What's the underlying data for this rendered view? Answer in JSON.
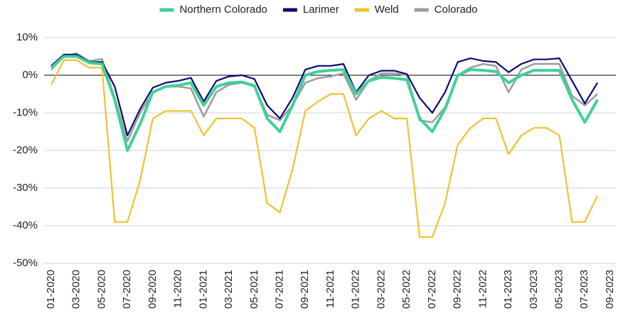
{
  "chart_data": {
    "type": "line",
    "categories": [
      "01-2020",
      null,
      "03-2020",
      null,
      "05-2020",
      null,
      "07-2020",
      null,
      "09-2020",
      null,
      "11-2020",
      null,
      "01-2021",
      null,
      "03-2021",
      null,
      "05-2021",
      null,
      "07-2021",
      null,
      "09-2021",
      null,
      "11-2021",
      null,
      "01-2022",
      null,
      "03-2022",
      null,
      "05-2022",
      null,
      "07-2022",
      null,
      "09-2022",
      null,
      "11-2022",
      null,
      "01-2023",
      null,
      "03-2023",
      null,
      "05-2023",
      null,
      "07-2023",
      null,
      "09-2023"
    ],
    "series": [
      {
        "name": "Northern Colorado",
        "color": "#3fd198",
        "width": 4,
        "values": [
          2,
          5,
          5,
          3.3,
          3,
          -6.5,
          -20,
          -13,
          -4.5,
          -3,
          -2.7,
          -2,
          -8,
          -3,
          -2,
          -1.8,
          -2.8,
          -11.5,
          -15,
          -8,
          0,
          1,
          1.3,
          1.5,
          -5,
          -1.5,
          -0.5,
          -0.8,
          -1.2,
          -11.5,
          -15,
          -9,
          0,
          1.5,
          1.3,
          1,
          -2,
          0,
          1.3,
          1.3,
          1.3,
          -6.5,
          -12.5,
          -6.5,
          null
        ]
      },
      {
        "name": "Larimer",
        "color": "#0b0a73",
        "width": 2.2,
        "values": [
          2.5,
          5.5,
          5.5,
          3.5,
          3.5,
          -3,
          -16,
          -9,
          -3.3,
          -2,
          -1.5,
          -0.7,
          -7,
          -1.5,
          -0.3,
          0,
          -1,
          -8,
          -11.5,
          -6,
          1.5,
          2.5,
          2.5,
          3,
          -4.5,
          0,
          1.2,
          1.2,
          0.3,
          -6,
          -10,
          -4.5,
          3.5,
          4.5,
          3.8,
          3.5,
          0.8,
          3,
          4.2,
          4.2,
          4.5,
          -1.5,
          -7.5,
          -2,
          null
        ]
      },
      {
        "name": "Weld",
        "color": "#f2c22c",
        "width": 2.2,
        "values": [
          -2.5,
          4,
          4,
          2,
          2,
          -39,
          -39,
          -28,
          -11.5,
          -9.5,
          -9.5,
          -9.5,
          -16,
          -11.5,
          -11.5,
          -11.5,
          -14,
          -34,
          -36.5,
          -25,
          -9.5,
          -7,
          -5,
          -5,
          -16,
          -11.5,
          -9.5,
          -11.5,
          -11.5,
          -43,
          -43,
          -34,
          -18.5,
          -14,
          -11.5,
          -11.5,
          -21,
          -16,
          -14,
          -14,
          -16,
          -39,
          -39,
          -32,
          null
        ]
      },
      {
        "name": "Colorado",
        "color": "#9e9e9e",
        "width": 2.6,
        "values": [
          1.5,
          5,
          5.8,
          3.8,
          4.3,
          -6,
          -17.5,
          -10,
          -4.5,
          -3,
          -3,
          -3.5,
          -11,
          -4.5,
          -2.5,
          -2,
          -3,
          -10.5,
          -12,
          -8,
          -2,
          -0.8,
          -0.3,
          0.5,
          -6.5,
          -1.5,
          0.5,
          0.5,
          0,
          -12,
          -12.5,
          -8.5,
          0,
          2,
          3,
          2.5,
          -4.5,
          1.5,
          3,
          3,
          3,
          -5.5,
          -8,
          -5,
          null
        ]
      }
    ],
    "ylim": [
      -50,
      10
    ],
    "yticks": [
      {
        "value": -50,
        "label": "-50%"
      },
      {
        "value": -40,
        "label": "-40%"
      },
      {
        "value": -30,
        "label": "-30%"
      },
      {
        "value": -20,
        "label": "-20%"
      },
      {
        "value": -10,
        "label": "-10%"
      },
      {
        "value": 0,
        "label": "0%"
      },
      {
        "value": 10,
        "label": "10%"
      }
    ],
    "grid": true,
    "legend": "top"
  }
}
